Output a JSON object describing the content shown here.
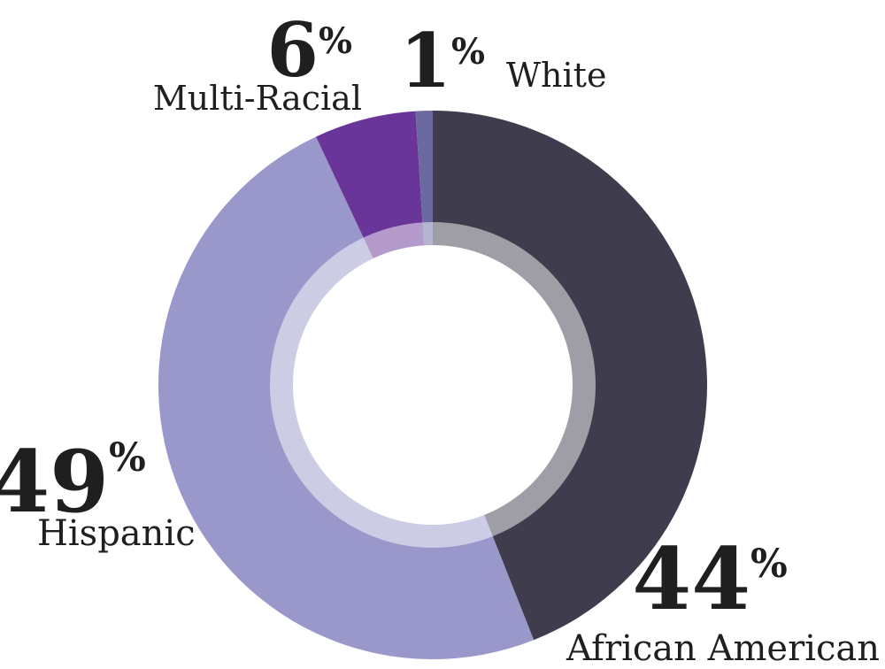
{
  "chart_data": {
    "type": "pie",
    "title": "",
    "slices": [
      {
        "label": "African American",
        "value": 44,
        "value_label": "44",
        "color": "#3e3c4d"
      },
      {
        "label": "Hispanic",
        "value": 49,
        "value_label": "49",
        "color": "#9a98ca"
      },
      {
        "label": "Multi-Racial",
        "value": 6,
        "value_label": "6",
        "color": "#6a3599"
      },
      {
        "label": "White",
        "value": 1,
        "value_label": "1",
        "color": "#6b6aa0"
      }
    ],
    "percent_symbol": "%",
    "donut": true,
    "legend": "none"
  }
}
